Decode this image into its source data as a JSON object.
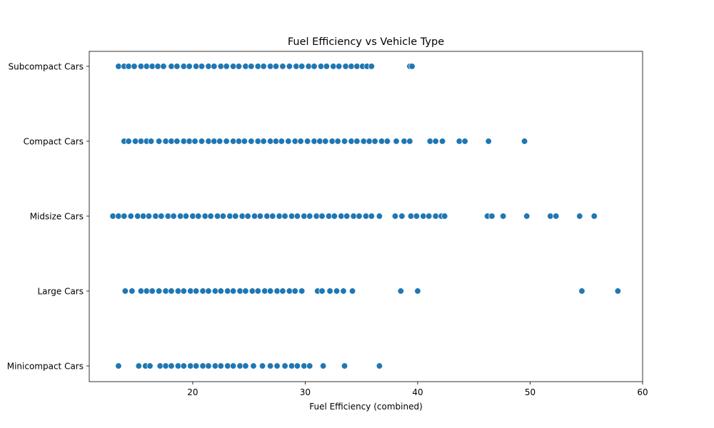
{
  "chart_data": {
    "type": "scatter",
    "title": "Fuel Efficiency vs Vehicle Type",
    "xlabel": "Fuel Efficiency (combined)",
    "ylabel": "",
    "xlim": [
      10.8,
      60
    ],
    "xticks": [
      20,
      30,
      40,
      50,
      60
    ],
    "grid": false,
    "legend": "none",
    "marker_color": "#1f77b4",
    "categories": [
      "Subcompact Cars",
      "Compact Cars",
      "Midsize Cars",
      "Large Cars",
      "Minicompact Cars"
    ],
    "series": [
      {
        "category": "Subcompact Cars",
        "x": [
          13.4,
          13.9,
          14.3,
          14.8,
          15.4,
          15.9,
          16.4,
          16.9,
          17.4,
          18.1,
          18.6,
          19.2,
          19.7,
          20.3,
          20.8,
          21.4,
          21.9,
          22.5,
          23.0,
          23.6,
          24.1,
          24.7,
          25.2,
          25.8,
          26.3,
          26.9,
          27.4,
          28.0,
          28.6,
          29.2,
          29.7,
          30.3,
          30.8,
          31.4,
          31.9,
          32.5,
          33.0,
          33.6,
          34.1,
          34.6,
          35.1,
          35.5,
          35.9,
          39.3,
          39.5
        ]
      },
      {
        "category": "Compact Cars",
        "x": [
          13.9,
          14.3,
          14.9,
          15.4,
          15.9,
          16.3,
          17.0,
          17.6,
          18.1,
          18.6,
          19.2,
          19.7,
          20.2,
          20.8,
          21.4,
          21.9,
          22.4,
          23.0,
          23.6,
          24.1,
          24.6,
          25.2,
          25.8,
          26.3,
          26.9,
          27.4,
          27.9,
          28.5,
          29.1,
          29.6,
          30.2,
          30.8,
          31.3,
          31.8,
          32.4,
          32.9,
          33.5,
          34.1,
          34.6,
          35.2,
          35.7,
          36.2,
          36.8,
          37.3,
          38.1,
          38.8,
          39.3,
          41.1,
          41.6,
          42.2,
          43.7,
          44.2,
          46.3,
          49.5
        ]
      },
      {
        "category": "Midsize Cars",
        "x": [
          12.9,
          13.4,
          13.9,
          14.5,
          15.1,
          15.6,
          16.1,
          16.7,
          17.2,
          17.8,
          18.3,
          18.9,
          19.4,
          20.0,
          20.5,
          21.1,
          21.6,
          22.2,
          22.7,
          23.3,
          23.8,
          24.4,
          24.9,
          25.5,
          26.0,
          26.6,
          27.1,
          27.7,
          28.2,
          28.8,
          29.3,
          29.9,
          30.4,
          31.0,
          31.5,
          32.1,
          32.6,
          33.2,
          33.7,
          34.3,
          34.8,
          35.4,
          35.9,
          36.6,
          38.0,
          38.6,
          39.4,
          39.9,
          40.5,
          41.0,
          41.6,
          42.1,
          42.4,
          46.2,
          46.6,
          47.6,
          49.7,
          51.8,
          52.3,
          54.4,
          55.7
        ]
      },
      {
        "category": "Large Cars",
        "x": [
          14.0,
          14.6,
          15.4,
          15.9,
          16.4,
          17.0,
          17.6,
          18.1,
          18.7,
          19.2,
          19.8,
          20.3,
          20.9,
          21.4,
          22.0,
          22.5,
          23.1,
          23.6,
          24.2,
          24.7,
          25.3,
          25.8,
          26.4,
          26.9,
          27.5,
          28.0,
          28.6,
          29.1,
          29.7,
          31.1,
          31.5,
          32.2,
          32.8,
          33.4,
          34.2,
          38.5,
          40.0,
          54.6,
          57.8
        ]
      },
      {
        "category": "Minicompact Cars",
        "x": [
          13.4,
          15.2,
          15.8,
          16.2,
          17.1,
          17.6,
          18.1,
          18.7,
          19.2,
          19.8,
          20.3,
          20.9,
          21.4,
          22.0,
          22.5,
          23.1,
          23.6,
          24.2,
          24.7,
          25.4,
          26.2,
          26.9,
          27.5,
          28.2,
          28.8,
          29.3,
          29.9,
          30.4,
          31.6,
          33.5,
          36.6
        ]
      }
    ]
  }
}
